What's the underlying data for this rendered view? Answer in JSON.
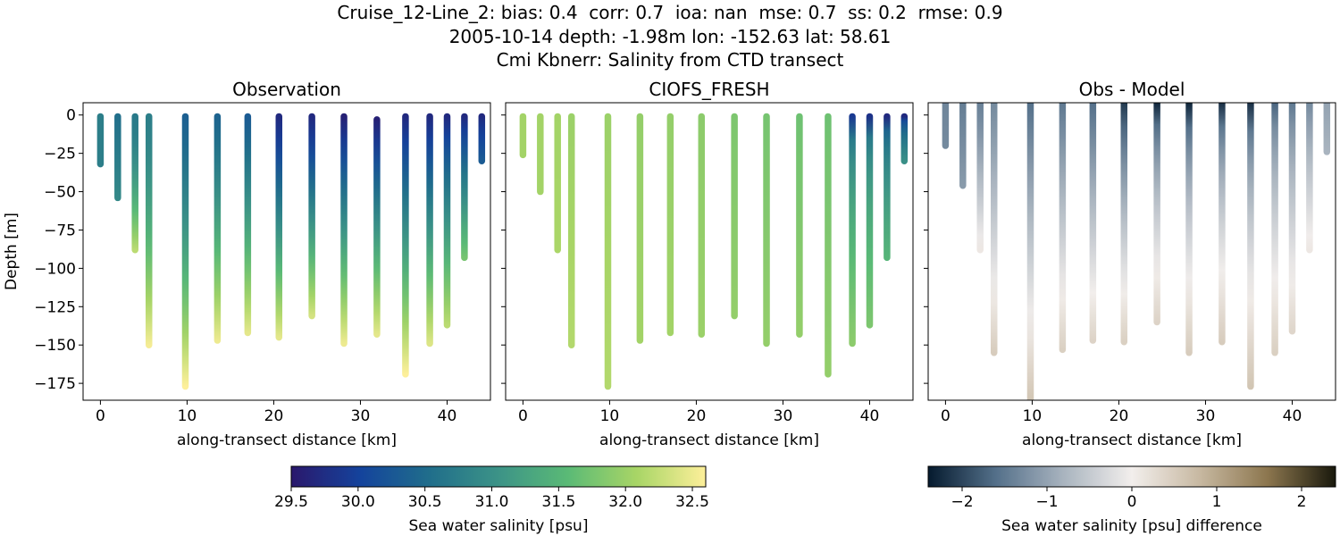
{
  "suptitle": {
    "line1": "Cruise_12-Line_2: bias: 0.4  corr: 0.7  ioa: nan  mse: 0.7  ss: 0.2  rmse: 0.9",
    "line2": "2005-10-14 depth: -1.98m lon: -152.63 lat: 58.61",
    "line3": "Cmi Kbnerr: Salinity from CTD transect"
  },
  "chart_data": [
    {
      "type": "scatter",
      "title": "Observation",
      "xlabel": "along-transect distance [km]",
      "ylabel": "Depth [m]",
      "xlim": [
        -2,
        45
      ],
      "ylim": [
        -186,
        8
      ],
      "xticks": [
        0,
        10,
        20,
        30,
        40
      ],
      "yticks": [
        0,
        -25,
        -50,
        -75,
        -100,
        -125,
        -150,
        -175
      ],
      "colormap": "haline",
      "casts": [
        {
          "x": 0.0,
          "bottom": -32,
          "top": -1,
          "surface": 30.75,
          "deep": 30.75,
          "shape": 1
        },
        {
          "x": 2.0,
          "bottom": -54,
          "top": -1,
          "surface": 30.55,
          "deep": 30.9,
          "shape": 1
        },
        {
          "x": 4.0,
          "bottom": -88,
          "top": -1,
          "surface": 30.7,
          "deep": 32.2,
          "shape": 1.6
        },
        {
          "x": 5.6,
          "bottom": -150,
          "top": -1,
          "surface": 30.75,
          "deep": 32.55,
          "shape": 1.4
        },
        {
          "x": 9.8,
          "bottom": -177,
          "top": -1,
          "surface": 30.35,
          "deep": 32.6,
          "shape": 1.3
        },
        {
          "x": 13.5,
          "bottom": -147,
          "top": -1,
          "surface": 30.4,
          "deep": 32.5,
          "shape": 1.2
        },
        {
          "x": 17.0,
          "bottom": -142,
          "top": -1,
          "surface": 30.3,
          "deep": 32.45,
          "shape": 1.2
        },
        {
          "x": 20.6,
          "bottom": -145,
          "top": -1,
          "surface": 29.7,
          "deep": 32.45,
          "shape": 1.1
        },
        {
          "x": 24.4,
          "bottom": -131,
          "top": -1,
          "surface": 29.7,
          "deep": 32.35,
          "shape": 1.1
        },
        {
          "x": 28.1,
          "bottom": -149,
          "top": -1,
          "surface": 29.6,
          "deep": 32.5,
          "shape": 1.0
        },
        {
          "x": 31.9,
          "bottom": -143,
          "top": -3,
          "surface": 29.6,
          "deep": 32.45,
          "shape": 1.0
        },
        {
          "x": 35.2,
          "bottom": -169,
          "top": -1,
          "surface": 29.7,
          "deep": 32.6,
          "shape": 1.0
        },
        {
          "x": 38.0,
          "bottom": -149,
          "top": -1,
          "surface": 29.7,
          "deep": 32.4,
          "shape": 1.0
        },
        {
          "x": 40.0,
          "bottom": -137,
          "top": -1,
          "surface": 29.7,
          "deep": 32.2,
          "shape": 0.9
        },
        {
          "x": 42.0,
          "bottom": -93,
          "top": -1,
          "surface": 29.7,
          "deep": 31.75,
          "shape": 0.9
        },
        {
          "x": 44.0,
          "bottom": -30,
          "top": -1,
          "surface": 29.7,
          "deep": 30.3,
          "shape": 0.8
        }
      ]
    },
    {
      "type": "scatter",
      "title": "CIOFS_FRESH",
      "xlabel": "along-transect distance [km]",
      "ylabel": "",
      "xlim": [
        -2,
        45
      ],
      "ylim": [
        -186,
        8
      ],
      "xticks": [
        0,
        10,
        20,
        30,
        40
      ],
      "colormap": "haline",
      "casts": [
        {
          "x": 0.0,
          "bottom": -26,
          "top": -1,
          "surface": 32.05,
          "deep": 32.05,
          "shape": 1
        },
        {
          "x": 2.0,
          "bottom": -50,
          "top": -1,
          "surface": 32.05,
          "deep": 32.05,
          "shape": 1
        },
        {
          "x": 4.0,
          "bottom": -88,
          "top": -1,
          "surface": 32.05,
          "deep": 32.1,
          "shape": 1
        },
        {
          "x": 5.6,
          "bottom": -150,
          "top": -1,
          "surface": 32.0,
          "deep": 32.15,
          "shape": 1
        },
        {
          "x": 9.8,
          "bottom": -177,
          "top": -1,
          "surface": 32.0,
          "deep": 32.15,
          "shape": 1
        },
        {
          "x": 13.5,
          "bottom": -147,
          "top": -1,
          "surface": 31.95,
          "deep": 32.05,
          "shape": 1
        },
        {
          "x": 17.0,
          "bottom": -142,
          "top": -1,
          "surface": 31.95,
          "deep": 32.05,
          "shape": 1
        },
        {
          "x": 20.6,
          "bottom": -143,
          "top": -1,
          "surface": 31.9,
          "deep": 32.0,
          "shape": 1
        },
        {
          "x": 24.4,
          "bottom": -131,
          "top": -1,
          "surface": 31.8,
          "deep": 31.95,
          "shape": 1
        },
        {
          "x": 28.1,
          "bottom": -149,
          "top": -1,
          "surface": 31.75,
          "deep": 31.95,
          "shape": 1
        },
        {
          "x": 31.9,
          "bottom": -143,
          "top": -1,
          "surface": 31.7,
          "deep": 31.95,
          "shape": 1
        },
        {
          "x": 35.2,
          "bottom": -169,
          "top": -1,
          "surface": 31.7,
          "deep": 31.95,
          "shape": 1
        },
        {
          "x": 38.0,
          "bottom": -149,
          "top": -1,
          "surface": 29.9,
          "deep": 31.9,
          "shape": 0.4
        },
        {
          "x": 40.0,
          "bottom": -137,
          "top": -1,
          "surface": 29.8,
          "deep": 31.8,
          "shape": 0.35
        },
        {
          "x": 42.0,
          "bottom": -93,
          "top": -1,
          "surface": 29.7,
          "deep": 31.5,
          "shape": 0.4
        },
        {
          "x": 44.0,
          "bottom": -30,
          "top": -1,
          "surface": 29.7,
          "deep": 31.0,
          "shape": 0.5
        }
      ]
    },
    {
      "type": "scatter",
      "title": "Obs - Model",
      "xlabel": "along-transect distance [km]",
      "ylabel": "",
      "xlim": [
        -2,
        45
      ],
      "ylim": [
        -186,
        8
      ],
      "xticks": [
        0,
        10,
        20,
        30,
        40
      ],
      "colormap": "diff",
      "casts": [
        {
          "x": 0.0,
          "bottom": -20,
          "top": 8,
          "surface": -1.35,
          "deep": -1.3,
          "shape": 1
        },
        {
          "x": 2.0,
          "bottom": -46,
          "top": 8,
          "surface": -1.45,
          "deep": -1.1,
          "shape": 1
        },
        {
          "x": 4.0,
          "bottom": -88,
          "top": 8,
          "surface": -1.4,
          "deep": 0.1,
          "shape": 1.2
        },
        {
          "x": 5.6,
          "bottom": -155,
          "top": 8,
          "surface": -1.3,
          "deep": 0.5,
          "shape": 1.1
        },
        {
          "x": 9.8,
          "bottom": -186,
          "top": 8,
          "surface": -1.6,
          "deep": 0.6,
          "shape": 1.0
        },
        {
          "x": 13.5,
          "bottom": -153,
          "top": 8,
          "surface": -1.5,
          "deep": 0.45,
          "shape": 1.0
        },
        {
          "x": 17.0,
          "bottom": -147,
          "top": 8,
          "surface": -1.6,
          "deep": 0.4,
          "shape": 1.0
        },
        {
          "x": 20.6,
          "bottom": -148,
          "top": 8,
          "surface": -2.1,
          "deep": 0.45,
          "shape": 0.8
        },
        {
          "x": 24.4,
          "bottom": -135,
          "top": 8,
          "surface": -2.3,
          "deep": 0.4,
          "shape": 0.6
        },
        {
          "x": 28.1,
          "bottom": -155,
          "top": 8,
          "surface": -2.3,
          "deep": 0.5,
          "shape": 0.6
        },
        {
          "x": 31.9,
          "bottom": -148,
          "top": 8,
          "surface": -2.2,
          "deep": 0.5,
          "shape": 0.6
        },
        {
          "x": 35.2,
          "bottom": -177,
          "top": 8,
          "surface": -2.2,
          "deep": 0.6,
          "shape": 0.6
        },
        {
          "x": 38.0,
          "bottom": -155,
          "top": 8,
          "surface": -1.7,
          "deep": 0.45,
          "shape": 0.7
        },
        {
          "x": 40.0,
          "bottom": -141,
          "top": 8,
          "surface": -1.5,
          "deep": 0.35,
          "shape": 0.8
        },
        {
          "x": 42.0,
          "bottom": -88,
          "top": 8,
          "surface": -1.3,
          "deep": 0.1,
          "shape": 0.9
        },
        {
          "x": 44.0,
          "bottom": -24,
          "top": 8,
          "surface": -1.0,
          "deep": -0.8,
          "shape": 1
        }
      ]
    }
  ],
  "colorbars": [
    {
      "label": "Sea water salinity [psu]",
      "vmin": 29.5,
      "vmax": 32.6,
      "colormap": "haline",
      "ticks": [
        "29.5",
        "30.0",
        "30.5",
        "31.0",
        "31.5",
        "32.0",
        "32.5"
      ]
    },
    {
      "label": "Sea water salinity [psu] difference",
      "vmin": -2.4,
      "vmax": 2.4,
      "colormap": "diff",
      "ticks": [
        "−2",
        "−1",
        "0",
        "1",
        "2"
      ]
    }
  ],
  "colors": {
    "haline": [
      "#2a186c",
      "#14439c",
      "#206e8b",
      "#3c9387",
      "#5aba76",
      "#a8d566",
      "#fdef9a"
    ],
    "diff": [
      "#051a2e",
      "#54708a",
      "#a9b4bf",
      "#f2eeec",
      "#c7b8a1",
      "#8c764e",
      "#19190c"
    ]
  }
}
